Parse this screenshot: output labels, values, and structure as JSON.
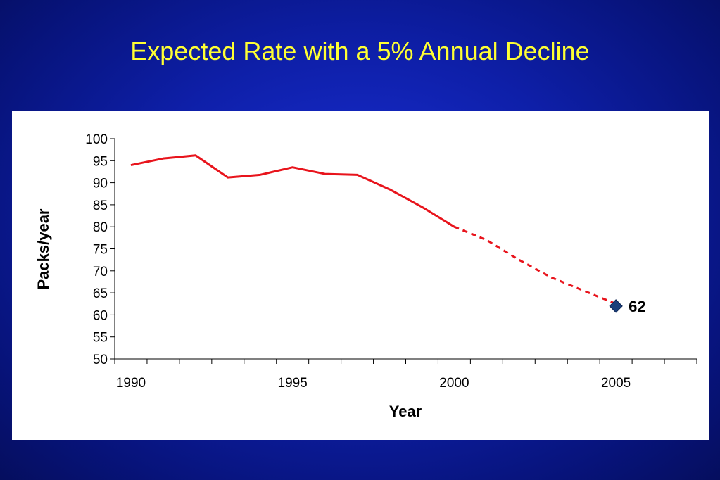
{
  "slide": {
    "title": "Expected Rate with a 5% Annual Decline"
  },
  "colors": {
    "background": "#0e1fa8",
    "title": "#ffff33",
    "line": "#e8141c",
    "marker": "#1b3f7a"
  },
  "chart_data": {
    "type": "line",
    "title": "",
    "xlabel": "Year",
    "ylabel": "Packs/year",
    "xlim": [
      1989.5,
      2007.5
    ],
    "ylim": [
      50,
      100
    ],
    "yticks": [
      50,
      55,
      60,
      65,
      70,
      75,
      80,
      85,
      90,
      95,
      100
    ],
    "xtick_labels": [
      1990,
      1995,
      2000,
      2005
    ],
    "grid": false,
    "series": [
      {
        "style": "solid",
        "color": "#e8141c",
        "x": [
          1990,
          1991,
          1992,
          1993,
          1994,
          1995,
          1996,
          1997,
          1998,
          1999,
          2000
        ],
        "y": [
          94,
          95.5,
          96.2,
          91.2,
          91.8,
          93.5,
          92,
          91.8,
          88.5,
          84.5,
          80
        ]
      },
      {
        "style": "dashed",
        "color": "#e8141c",
        "x": [
          2000,
          2001,
          2002,
          2003,
          2004,
          2005
        ],
        "y": [
          80,
          77,
          72.5,
          68.5,
          65.5,
          62.5
        ]
      },
      {
        "style": "marker",
        "color": "#1b3f7a",
        "x": [
          2005
        ],
        "y": [
          62
        ],
        "labels": [
          "62"
        ]
      }
    ]
  }
}
